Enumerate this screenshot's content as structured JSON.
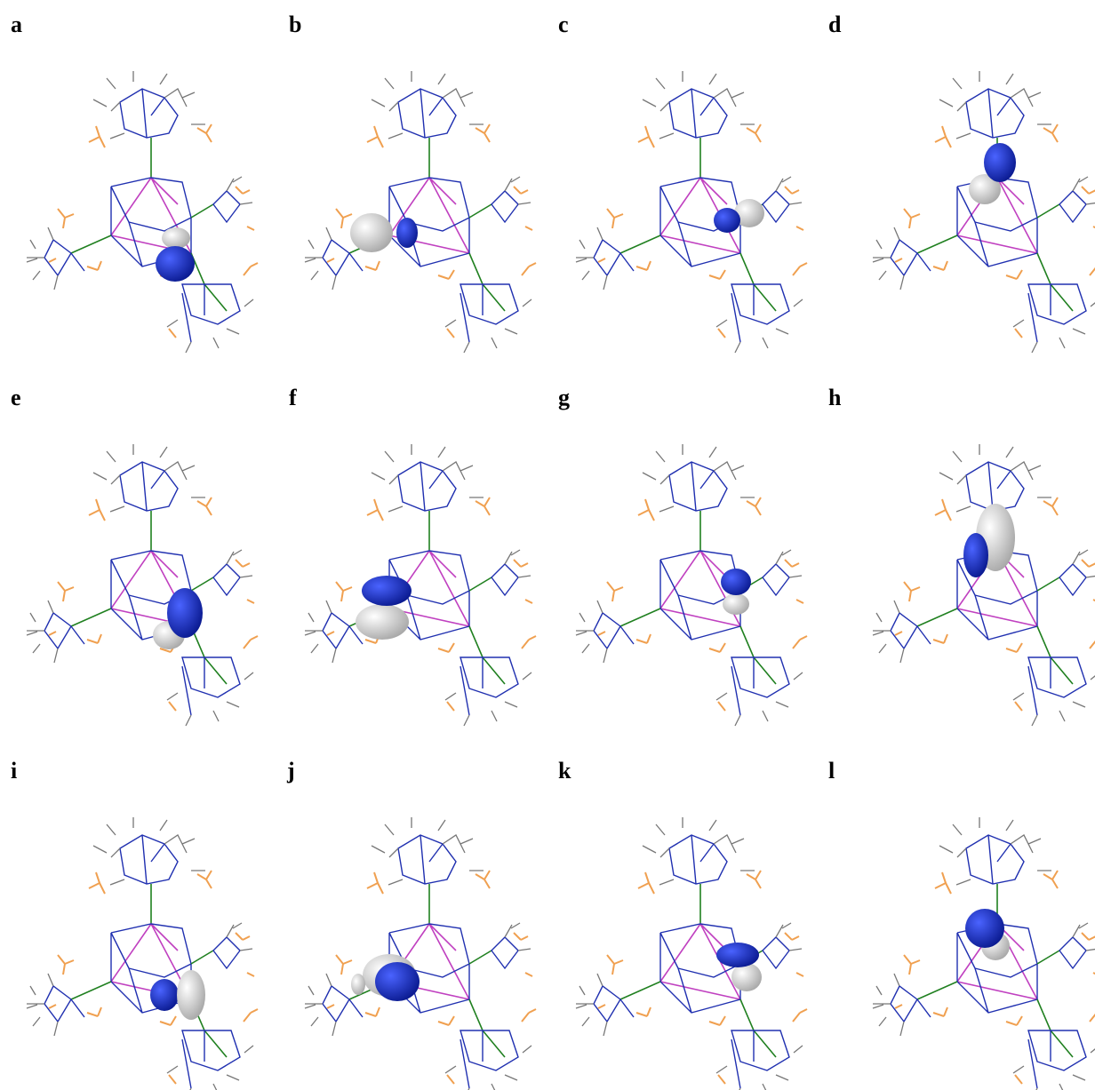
{
  "panels": [
    {
      "label": "a"
    },
    {
      "label": "b"
    },
    {
      "label": "c"
    },
    {
      "label": "d"
    },
    {
      "label": "e"
    },
    {
      "label": "f"
    },
    {
      "label": "g"
    },
    {
      "label": "h"
    },
    {
      "label": "i"
    },
    {
      "label": "j"
    },
    {
      "label": "k"
    },
    {
      "label": "l"
    }
  ]
}
